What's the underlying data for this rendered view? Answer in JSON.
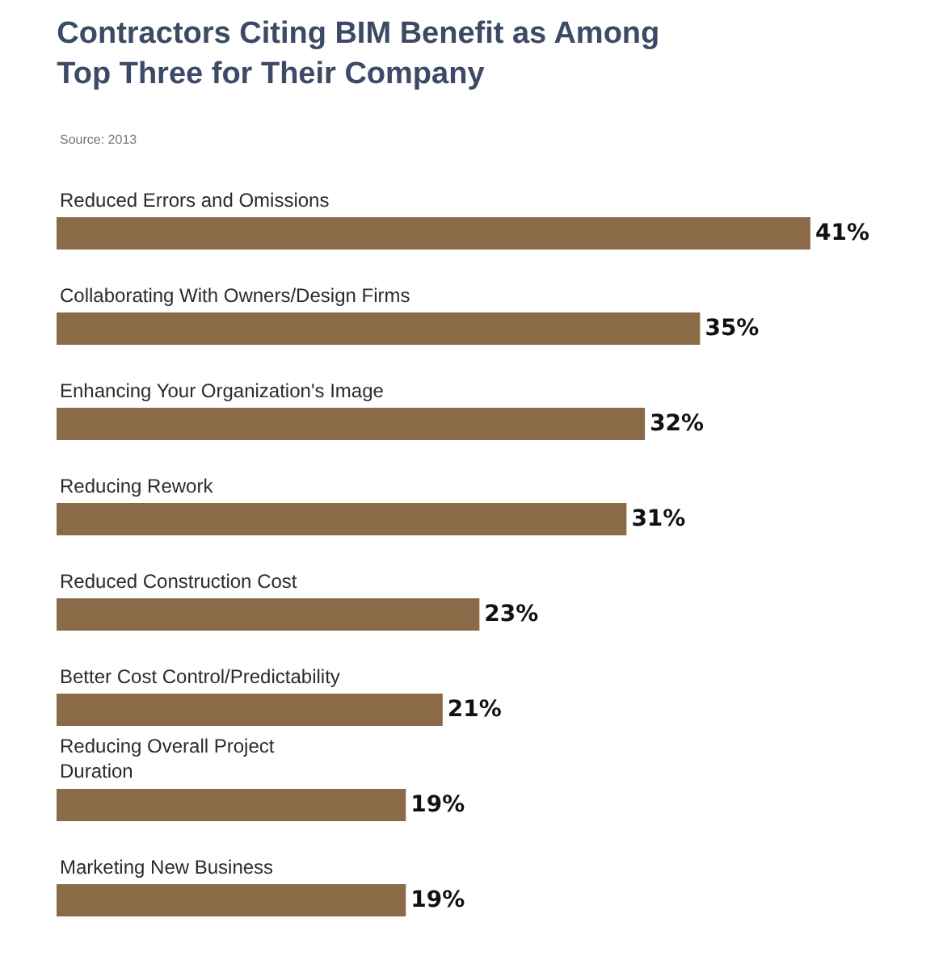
{
  "chart_data": {
    "type": "bar",
    "orientation": "horizontal",
    "title": "Contractors Citing BIM Benefit as Among\nTop Three for Their Company",
    "annotations": [
      "Source: 2013"
    ],
    "categories": [
      "Reduced Errors and Omissions",
      "Collaborating With Owners/Design Firms",
      "Enhancing Your Organization's Image",
      "Reducing Rework",
      "Reduced Construction Cost",
      "Better Cost Control/Predictability",
      "Reducing Overall Project\nDuration",
      "Marketing New Business"
    ],
    "values": [
      41,
      35,
      32,
      31,
      23,
      21,
      19,
      19
    ],
    "value_labels": [
      "41%",
      "35%",
      "32%",
      "31%",
      "23%",
      "21%",
      "19%",
      "19%"
    ],
    "color": "#8b6b47",
    "legend": false
  }
}
